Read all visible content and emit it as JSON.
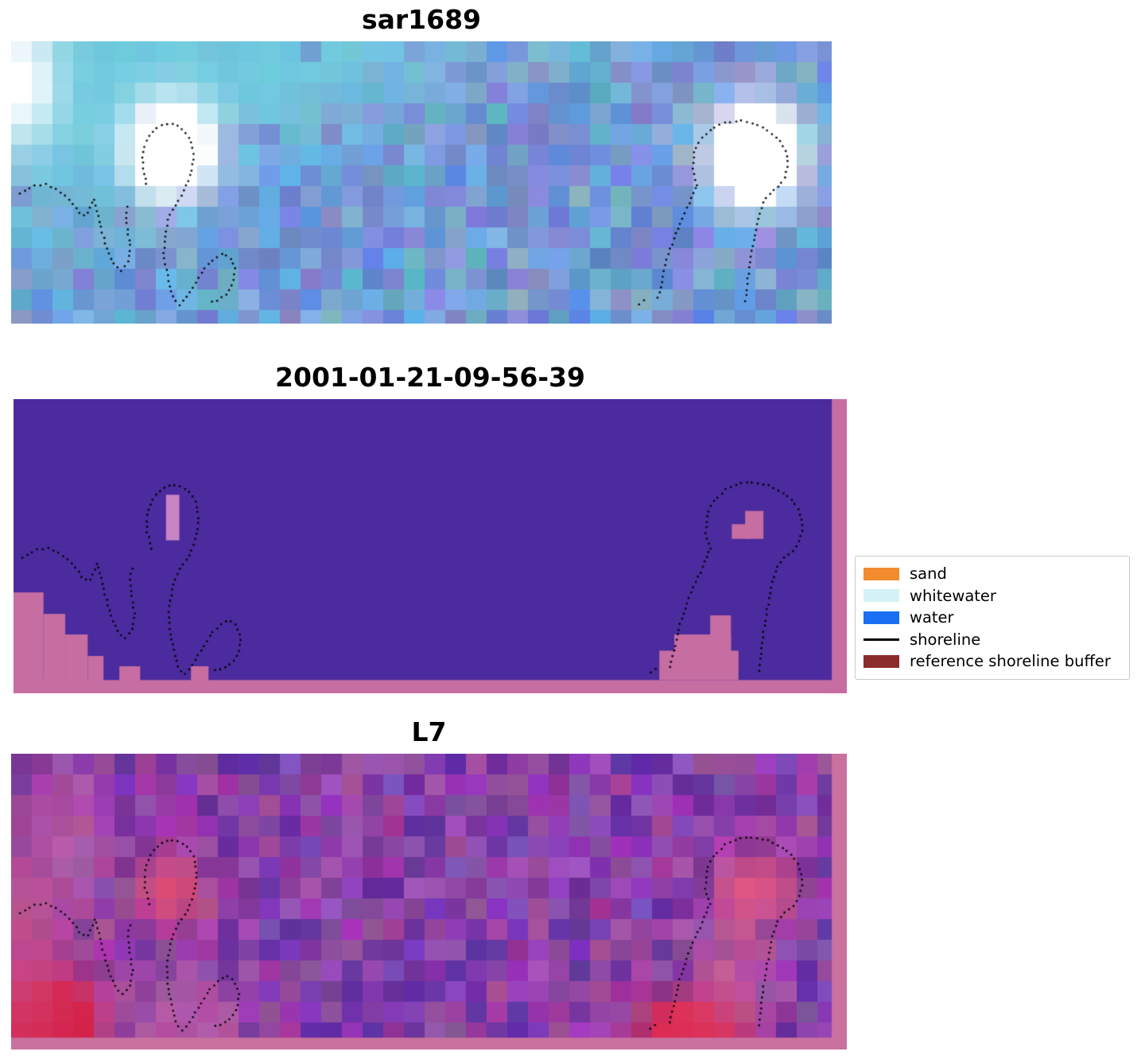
{
  "chart_data": {
    "type": "heatmap",
    "title": "",
    "panels": [
      {
        "title": "sar1689",
        "kind": "sar-backscatter-rgb",
        "palette": [
          "#5b8fc8",
          "#6fc3dc",
          "#ffffff"
        ]
      },
      {
        "title": "2001-01-21-09-56-39",
        "kind": "pixel-classification",
        "classes_visible": [
          "water",
          "reference shoreline buffer"
        ],
        "water_color": "#4b2b9d",
        "buffer_color": "#c66da1"
      },
      {
        "title": "L7",
        "kind": "landsat-7-false-color",
        "palette": [
          "#8a3fa0",
          "#d42846",
          "#c9719f"
        ]
      }
    ],
    "legend": {
      "position": "right",
      "entries": [
        {
          "label": "sand",
          "type": "patch",
          "color": "#f28c2e"
        },
        {
          "label": "whitewater",
          "type": "patch",
          "color": "#d4f2f6"
        },
        {
          "label": "water",
          "type": "patch",
          "color": "#1a6ff2"
        },
        {
          "label": "shoreline",
          "type": "line",
          "color": "#000000"
        },
        {
          "label": "reference shoreline buffer",
          "type": "patch",
          "color": "#8c2b2b"
        }
      ]
    },
    "shorelines": {
      "left_squiggle": [
        [
          0.011,
          0.538
        ],
        [
          0.027,
          0.513
        ],
        [
          0.043,
          0.507
        ],
        [
          0.058,
          0.529
        ],
        [
          0.072,
          0.563
        ],
        [
          0.082,
          0.603
        ],
        [
          0.091,
          0.62
        ],
        [
          0.097,
          0.586
        ],
        [
          0.1,
          0.558
        ],
        [
          0.105,
          0.608
        ],
        [
          0.111,
          0.676
        ],
        [
          0.117,
          0.741
        ],
        [
          0.125,
          0.792
        ],
        [
          0.134,
          0.814
        ],
        [
          0.142,
          0.786
        ],
        [
          0.145,
          0.732
        ],
        [
          0.142,
          0.67
        ],
        [
          0.14,
          0.614
        ],
        [
          0.143,
          0.569
        ]
      ],
      "left_loop_tail": [
        [
          0.165,
          0.507
        ],
        [
          0.16,
          0.445
        ],
        [
          0.161,
          0.383
        ],
        [
          0.169,
          0.332
        ],
        [
          0.18,
          0.301
        ],
        [
          0.195,
          0.29
        ],
        [
          0.208,
          0.307
        ],
        [
          0.218,
          0.346
        ],
        [
          0.222,
          0.403
        ],
        [
          0.22,
          0.459
        ],
        [
          0.213,
          0.515
        ],
        [
          0.205,
          0.558
        ],
        [
          0.197,
          0.592
        ],
        [
          0.191,
          0.637
        ],
        [
          0.188,
          0.693
        ],
        [
          0.186,
          0.749
        ],
        [
          0.189,
          0.806
        ],
        [
          0.193,
          0.862
        ],
        [
          0.198,
          0.915
        ],
        [
          0.205,
          0.935
        ],
        [
          0.213,
          0.91
        ],
        [
          0.222,
          0.868
        ],
        [
          0.231,
          0.825
        ],
        [
          0.239,
          0.792
        ],
        [
          0.249,
          0.766
        ],
        [
          0.259,
          0.752
        ],
        [
          0.267,
          0.766
        ],
        [
          0.273,
          0.806
        ],
        [
          0.271,
          0.854
        ],
        [
          0.264,
          0.893
        ],
        [
          0.252,
          0.918
        ],
        [
          0.24,
          0.924
        ]
      ],
      "right_loop": [
        [
          0.836,
          0.51
        ],
        [
          0.831,
          0.454
        ],
        [
          0.832,
          0.394
        ],
        [
          0.841,
          0.344
        ],
        [
          0.855,
          0.307
        ],
        [
          0.871,
          0.287
        ],
        [
          0.889,
          0.282
        ],
        [
          0.906,
          0.293
        ],
        [
          0.922,
          0.315
        ],
        [
          0.935,
          0.346
        ],
        [
          0.944,
          0.386
        ],
        [
          0.947,
          0.431
        ],
        [
          0.944,
          0.476
        ],
        [
          0.936,
          0.513
        ],
        [
          0.925,
          0.538
        ],
        [
          0.917,
          0.566
        ],
        [
          0.912,
          0.608
        ],
        [
          0.908,
          0.665
        ],
        [
          0.904,
          0.721
        ],
        [
          0.901,
          0.777
        ],
        [
          0.898,
          0.834
        ],
        [
          0.896,
          0.89
        ],
        [
          0.895,
          0.924
        ]
      ],
      "right_stem": [
        [
          0.834,
          0.518
        ],
        [
          0.827,
          0.569
        ],
        [
          0.819,
          0.62
        ],
        [
          0.811,
          0.673
        ],
        [
          0.804,
          0.727
        ],
        [
          0.798,
          0.783
        ],
        [
          0.794,
          0.839
        ],
        [
          0.79,
          0.89
        ],
        [
          0.787,
          0.924
        ]
      ],
      "bottom_dash": [
        [
          0.765,
          0.93
        ],
        [
          0.773,
          0.915
        ]
      ]
    }
  },
  "render": {
    "cell": 26,
    "sar": {
      "seed": 7,
      "base": [
        88,
        128,
        188
      ],
      "base_var": [
        58,
        56,
        48
      ],
      "cyan": [
        110,
        208,
        224
      ],
      "purple": [
        120,
        110,
        200
      ],
      "purple_p": 0.1,
      "cyan_zones": [
        [
          0.1,
          0.12,
          0.22,
          0.4,
          0.85
        ],
        [
          0.34,
          0.1,
          0.13,
          0.22,
          0.55
        ],
        [
          0.03,
          0.55,
          0.1,
          0.35,
          0.35
        ],
        [
          0.55,
          0.05,
          0.3,
          0.12,
          0.3
        ]
      ],
      "white_blobs": [
        [
          0.193,
          0.37,
          0.05,
          0.16,
          2.2
        ],
        [
          0.9,
          0.39,
          0.052,
          0.17,
          2.2
        ],
        [
          0.012,
          0.14,
          0.045,
          0.22,
          1.1
        ]
      ]
    },
    "l7": {
      "seed": 13,
      "base": [
        118,
        48,
        145
      ],
      "base_var": [
        52,
        40,
        50
      ],
      "dark": [
        72,
        36,
        152
      ],
      "dark_p": 0.17,
      "strip_color": "#c9719f",
      "strips": [
        [
          0.982,
          0.0,
          0.018,
          1.0
        ],
        [
          0.0,
          0.96,
          1.0,
          0.04
        ]
      ],
      "blobs": [
        [
          0.045,
          0.87,
          0.055,
          0.15,
          1.9,
          [
            214,
            24,
            62
          ]
        ],
        [
          0.19,
          0.44,
          0.045,
          0.12,
          1.0,
          [
            221,
            76,
            116
          ]
        ],
        [
          0.875,
          0.44,
          0.05,
          0.13,
          1.0,
          [
            226,
            86,
            130
          ]
        ],
        [
          0.8,
          0.89,
          0.06,
          0.11,
          1.5,
          [
            221,
            44,
            84
          ]
        ],
        [
          0.845,
          0.7,
          0.045,
          0.16,
          0.7,
          [
            212,
            100,
            150
          ]
        ],
        [
          0.015,
          0.6,
          0.055,
          0.4,
          0.75,
          [
            208,
            80,
            132
          ]
        ],
        [
          0.2,
          0.84,
          0.09,
          0.2,
          0.5,
          [
            200,
            100,
            155
          ]
        ],
        [
          0.06,
          0.3,
          0.05,
          0.25,
          0.45,
          [
            200,
            110,
            160
          ]
        ]
      ]
    },
    "class": {
      "water_color": "#4b2b9d",
      "buffer_color": "#c66da1",
      "buffer_light": "#c884c4",
      "rects": [
        [
          0.0,
          0.657,
          0.036,
          0.343,
          "b"
        ],
        [
          0.036,
          0.73,
          0.026,
          0.27,
          "b"
        ],
        [
          0.062,
          0.8,
          0.027,
          0.2,
          "b"
        ],
        [
          0.089,
          0.873,
          0.019,
          0.127,
          "b"
        ],
        [
          0.127,
          0.908,
          0.025,
          0.092,
          "b"
        ],
        [
          0.213,
          0.908,
          0.021,
          0.092,
          "b"
        ],
        [
          0.836,
          0.735,
          0.025,
          0.12,
          "b"
        ],
        [
          0.793,
          0.8,
          0.068,
          0.08,
          "b"
        ],
        [
          0.775,
          0.855,
          0.095,
          0.1,
          "b"
        ],
        [
          0.878,
          0.38,
          0.022,
          0.095,
          "b"
        ],
        [
          0.862,
          0.425,
          0.022,
          0.05,
          "b"
        ],
        [
          0.183,
          0.325,
          0.016,
          0.155,
          "l"
        ],
        [
          0.0,
          0.955,
          1.0,
          0.045,
          "b"
        ],
        [
          0.982,
          0.0,
          0.018,
          1.0,
          "b"
        ]
      ]
    },
    "dots": {
      "spacing": 7,
      "radius": 1.4,
      "color": "#000000",
      "alpha": 0.9
    }
  }
}
